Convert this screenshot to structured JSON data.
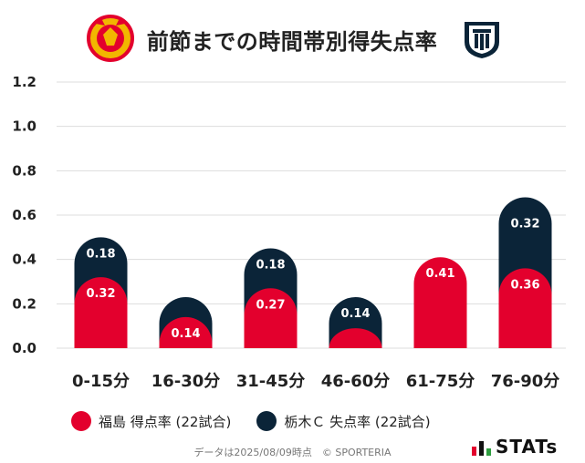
{
  "title": "前節までの時間帯別得失点率",
  "footer": "データは2025/08/09時点　© SPORTERIA",
  "brand": "STATs",
  "colors": {
    "home": "#e3002d",
    "away": "#0b2438",
    "grid": "#dddddd"
  },
  "legend": [
    {
      "label": "福島 得点率 (22試合)",
      "color": "#e3002d"
    },
    {
      "label": "栃木Ｃ 失点率 (22試合)",
      "color": "#0b2438"
    }
  ],
  "chart_data": {
    "type": "bar",
    "stacked": true,
    "title": "前節までの時間帯別得失点率",
    "xlabel": "",
    "ylabel": "",
    "categories": [
      "0-15分",
      "16-30分",
      "31-45分",
      "46-60分",
      "61-75分",
      "76-90分"
    ],
    "series": [
      {
        "name": "福島 得点率 (22試合)",
        "values": [
          0.32,
          0.14,
          0.27,
          0.09,
          0.41,
          0.36
        ],
        "labels": [
          "0.32",
          "0.14",
          "0.27",
          "",
          "0.41",
          "0.36"
        ]
      },
      {
        "name": "栃木Ｃ 失点率 (22試合)",
        "values": [
          0.18,
          0.09,
          0.18,
          0.14,
          0.0,
          0.32
        ],
        "labels": [
          "0.18",
          "",
          "0.18",
          "0.14",
          "",
          "0.32"
        ]
      }
    ],
    "yticks": [
      "0.0",
      "0.2",
      "0.4",
      "0.6",
      "0.8",
      "1.0",
      "1.2"
    ],
    "ylim": [
      0,
      1.2
    ],
    "grid": true,
    "legend_position": "bottom"
  }
}
